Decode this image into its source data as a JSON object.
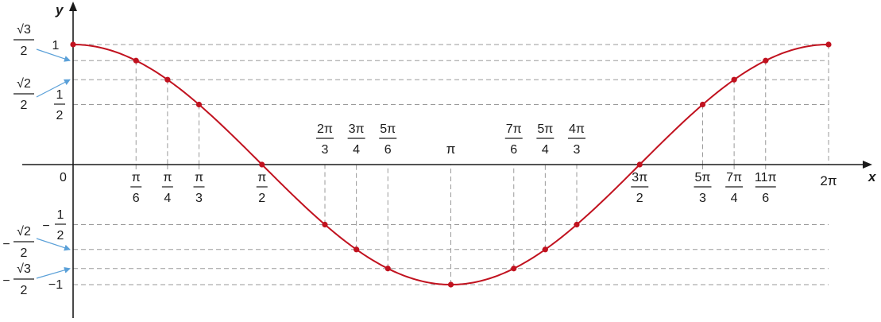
{
  "chart_data": {
    "type": "line",
    "function": "cos",
    "series": [
      {
        "x": [
          "0",
          "π/6",
          "π/4",
          "π/3",
          "π/2",
          "2π/3",
          "3π/4",
          "5π/6",
          "π",
          "7π/6",
          "5π/4",
          "4π/3",
          "3π/2",
          "5π/3",
          "7π/4",
          "11π/6",
          "2π"
        ],
        "y": [
          1,
          0.866,
          0.7071,
          0.5,
          0,
          -0.5,
          -0.7071,
          -0.866,
          -1,
          -0.866,
          -0.7071,
          -0.5,
          0,
          0.5,
          0.7071,
          0.866,
          1
        ]
      }
    ],
    "x_ticks": [
      {
        "num": "π",
        "den": "6",
        "pos": "below"
      },
      {
        "num": "π",
        "den": "4",
        "pos": "below"
      },
      {
        "num": "π",
        "den": "3",
        "pos": "below"
      },
      {
        "num": "π",
        "den": "2",
        "pos": "below"
      },
      {
        "num": "2π",
        "den": "3",
        "pos": "above"
      },
      {
        "num": "3π",
        "den": "4",
        "pos": "above"
      },
      {
        "num": "5π",
        "den": "6",
        "pos": "above"
      },
      {
        "num": "π",
        "den": "",
        "pos": "above"
      },
      {
        "num": "7π",
        "den": "6",
        "pos": "above"
      },
      {
        "num": "5π",
        "den": "4",
        "pos": "above"
      },
      {
        "num": "4π",
        "den": "3",
        "pos": "above"
      },
      {
        "num": "3π",
        "den": "2",
        "pos": "below"
      },
      {
        "num": "5π",
        "den": "3",
        "pos": "below"
      },
      {
        "num": "7π",
        "den": "4",
        "pos": "below"
      },
      {
        "num": "11π",
        "den": "6",
        "pos": "below"
      },
      {
        "num": "2π",
        "den": "",
        "pos": "below"
      }
    ],
    "origin_label": "0",
    "xlabel": "x",
    "ylabel": "y",
    "xlim": [
      0,
      6.2832
    ],
    "ylim": [
      -1,
      1
    ],
    "y_labels": {
      "one": "1",
      "minus_one": "−1",
      "half_num": "1",
      "half_den": "2",
      "neg_half_sign": "−",
      "neg_half_num": "1",
      "neg_half_den": "2",
      "sqrt3_num": "√3",
      "sqrt3_den": "2",
      "sqrt2_num": "√2",
      "sqrt2_den": "2",
      "neg_sqrt2_sign": "−",
      "neg_sqrt2_num": "√2",
      "neg_sqrt2_den": "2",
      "neg_sqrt3_sign": "−",
      "neg_sqrt3_num": "√3",
      "neg_sqrt3_den": "2"
    },
    "grid": "dashed guides",
    "colors": {
      "curve": "#c1121f",
      "points": "#c1121f",
      "guides": "#9a9a9a",
      "arrows": "#5aa0d8",
      "axes": "#1a1a1a"
    }
  }
}
